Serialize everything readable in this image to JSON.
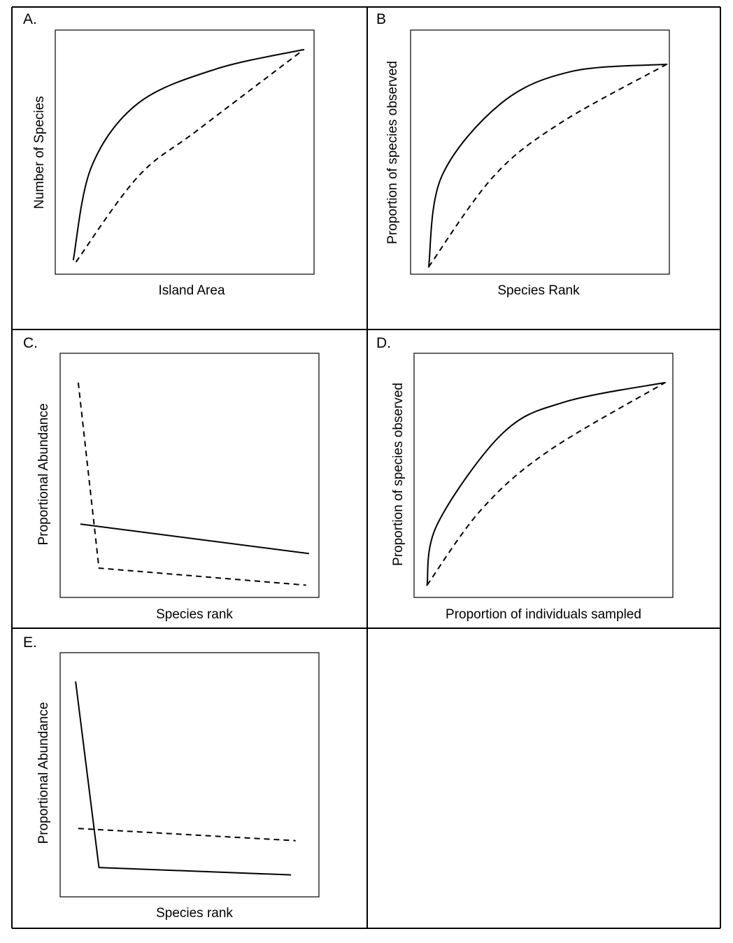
{
  "chart_data": [
    {
      "panel": "A.",
      "type": "line",
      "xlabel": "Island Area",
      "ylabel": "Number of Species",
      "x_ticks": false,
      "y_ticks": false,
      "series": [
        {
          "style": "solid",
          "points": [
            [
              0.07,
              0.06
            ],
            [
              0.14,
              0.44
            ],
            [
              0.32,
              0.7
            ],
            [
              0.62,
              0.84
            ],
            [
              0.96,
              0.92
            ]
          ]
        },
        {
          "style": "dashed",
          "points": [
            [
              0.08,
              0.05
            ],
            [
              0.32,
              0.4
            ],
            [
              0.55,
              0.59
            ],
            [
              0.96,
              0.92
            ]
          ]
        }
      ]
    },
    {
      "panel": "B",
      "type": "line",
      "xlabel": "Species Rank",
      "ylabel": "Proportion  of species observed",
      "x_ticks": false,
      "y_ticks": false,
      "series": [
        {
          "style": "solid",
          "points": [
            [
              0.07,
              0.03
            ],
            [
              0.12,
              0.4
            ],
            [
              0.35,
              0.7
            ],
            [
              0.62,
              0.83
            ],
            [
              0.99,
              0.86
            ]
          ]
        },
        {
          "style": "dashed",
          "points": [
            [
              0.07,
              0.03
            ],
            [
              0.32,
              0.4
            ],
            [
              0.58,
              0.62
            ],
            [
              0.99,
              0.86
            ]
          ]
        }
      ]
    },
    {
      "panel": "C.",
      "type": "line",
      "xlabel": "Species rank",
      "ylabel": "Proportional  Abundance",
      "x_ticks": false,
      "y_ticks": false,
      "series": [
        {
          "style": "solid",
          "points": [
            [
              0.08,
              0.3
            ],
            [
              0.96,
              0.18
            ]
          ]
        },
        {
          "style": "dashed",
          "points": [
            [
              0.07,
              0.88
            ],
            [
              0.15,
              0.12
            ],
            [
              0.95,
              0.05
            ]
          ]
        }
      ]
    },
    {
      "panel": "D.",
      "type": "line",
      "xlabel": "Proportion  of individuals sampled",
      "ylabel": "Proportion  of species observed",
      "x_ticks": false,
      "y_ticks": false,
      "series": [
        {
          "style": "solid",
          "points": [
            [
              0.05,
              0.05
            ],
            [
              0.09,
              0.3
            ],
            [
              0.34,
              0.67
            ],
            [
              0.58,
              0.8
            ],
            [
              0.97,
              0.88
            ]
          ]
        },
        {
          "style": "dashed",
          "points": [
            [
              0.05,
              0.05
            ],
            [
              0.26,
              0.36
            ],
            [
              0.52,
              0.6
            ],
            [
              0.97,
              0.88
            ]
          ]
        }
      ]
    },
    {
      "panel": "E.",
      "type": "line",
      "xlabel": "Species rank",
      "ylabel": "Proportional  Abundance",
      "x_ticks": false,
      "y_ticks": false,
      "series": [
        {
          "style": "solid",
          "points": [
            [
              0.06,
              0.88
            ],
            [
              0.15,
              0.12
            ],
            [
              0.89,
              0.09
            ]
          ]
        },
        {
          "style": "dashed",
          "points": [
            [
              0.07,
              0.28
            ],
            [
              0.91,
              0.23
            ]
          ]
        }
      ]
    }
  ]
}
